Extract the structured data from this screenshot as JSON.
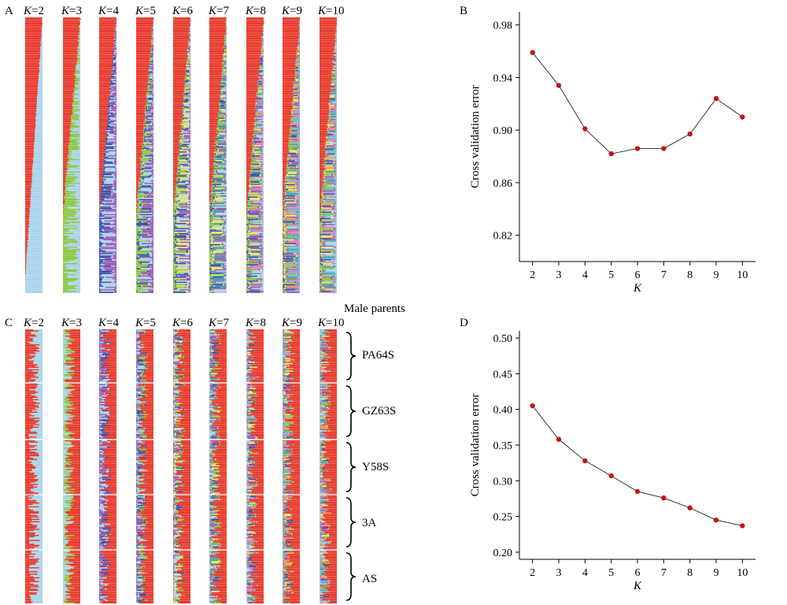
{
  "panels": {
    "a": "A",
    "b": "B",
    "c": "C",
    "d": "D"
  },
  "admixture_top": {
    "k_labels": [
      {
        "k": "K",
        "eq": "=2"
      },
      {
        "k": "K",
        "eq": "=3"
      },
      {
        "k": "K",
        "eq": "=4"
      },
      {
        "k": "K",
        "eq": "=5"
      },
      {
        "k": "K",
        "eq": "=6"
      },
      {
        "k": "K",
        "eq": "=7"
      },
      {
        "k": "K",
        "eq": "=8"
      },
      {
        "k": "K",
        "eq": "=9"
      },
      {
        "k": "K",
        "eq": "=10"
      }
    ]
  },
  "admixture_bottom": {
    "header": "Male parents",
    "k_labels": [
      {
        "k": "K",
        "eq": "=2"
      },
      {
        "k": "K",
        "eq": "=3"
      },
      {
        "k": "K",
        "eq": "=4"
      },
      {
        "k": "K",
        "eq": "=5"
      },
      {
        "k": "K",
        "eq": "=6"
      },
      {
        "k": "K",
        "eq": "=7"
      },
      {
        "k": "K",
        "eq": "=8"
      },
      {
        "k": "K",
        "eq": "=9"
      },
      {
        "k": "K",
        "eq": "=10"
      }
    ],
    "groups": [
      "PA64S",
      "GZ63S",
      "Y58S",
      "3A",
      "AS"
    ]
  },
  "colors": {
    "red": "#e8392b",
    "lightblue": "#a9d3ea",
    "green": "#8cc63f",
    "blue": "#3b4fa8",
    "purple": "#9b59b6",
    "yellow": "#e8e36a",
    "orange": "#f5a142",
    "teal": "#41a59a",
    "pink": "#e07ab8",
    "cyan": "#5bc0de",
    "point": "#c0161d"
  },
  "chart_data": [
    {
      "type": "line",
      "panel": "B",
      "x": [
        2,
        3,
        4,
        5,
        6,
        7,
        8,
        9,
        10
      ],
      "values": [
        0.959,
        0.934,
        0.901,
        0.882,
        0.886,
        0.886,
        0.897,
        0.924,
        0.91
      ],
      "xlabel": "K",
      "ylabel": "Cross validation error",
      "xticks": [
        "2",
        "3",
        "4",
        "5",
        "6",
        "7",
        "8",
        "9",
        "10"
      ],
      "yticks": [
        "0.82",
        "0.86",
        "0.90",
        "0.94",
        "0.98"
      ],
      "ylim": [
        0.8,
        0.99
      ],
      "grid": false
    },
    {
      "type": "line",
      "panel": "D",
      "x": [
        2,
        3,
        4,
        5,
        6,
        7,
        8,
        9,
        10
      ],
      "values": [
        0.405,
        0.358,
        0.328,
        0.307,
        0.285,
        0.276,
        0.262,
        0.245,
        0.237
      ],
      "xlabel": "K",
      "ylabel": "Cross validation error",
      "xticks": [
        "2",
        "3",
        "4",
        "5",
        "6",
        "7",
        "8",
        "9",
        "10"
      ],
      "yticks": [
        "0.20",
        "0.25",
        "0.30",
        "0.35",
        "0.40",
        "0.45",
        "0.50"
      ],
      "ylim": [
        0.19,
        0.51
      ],
      "grid": false
    }
  ]
}
